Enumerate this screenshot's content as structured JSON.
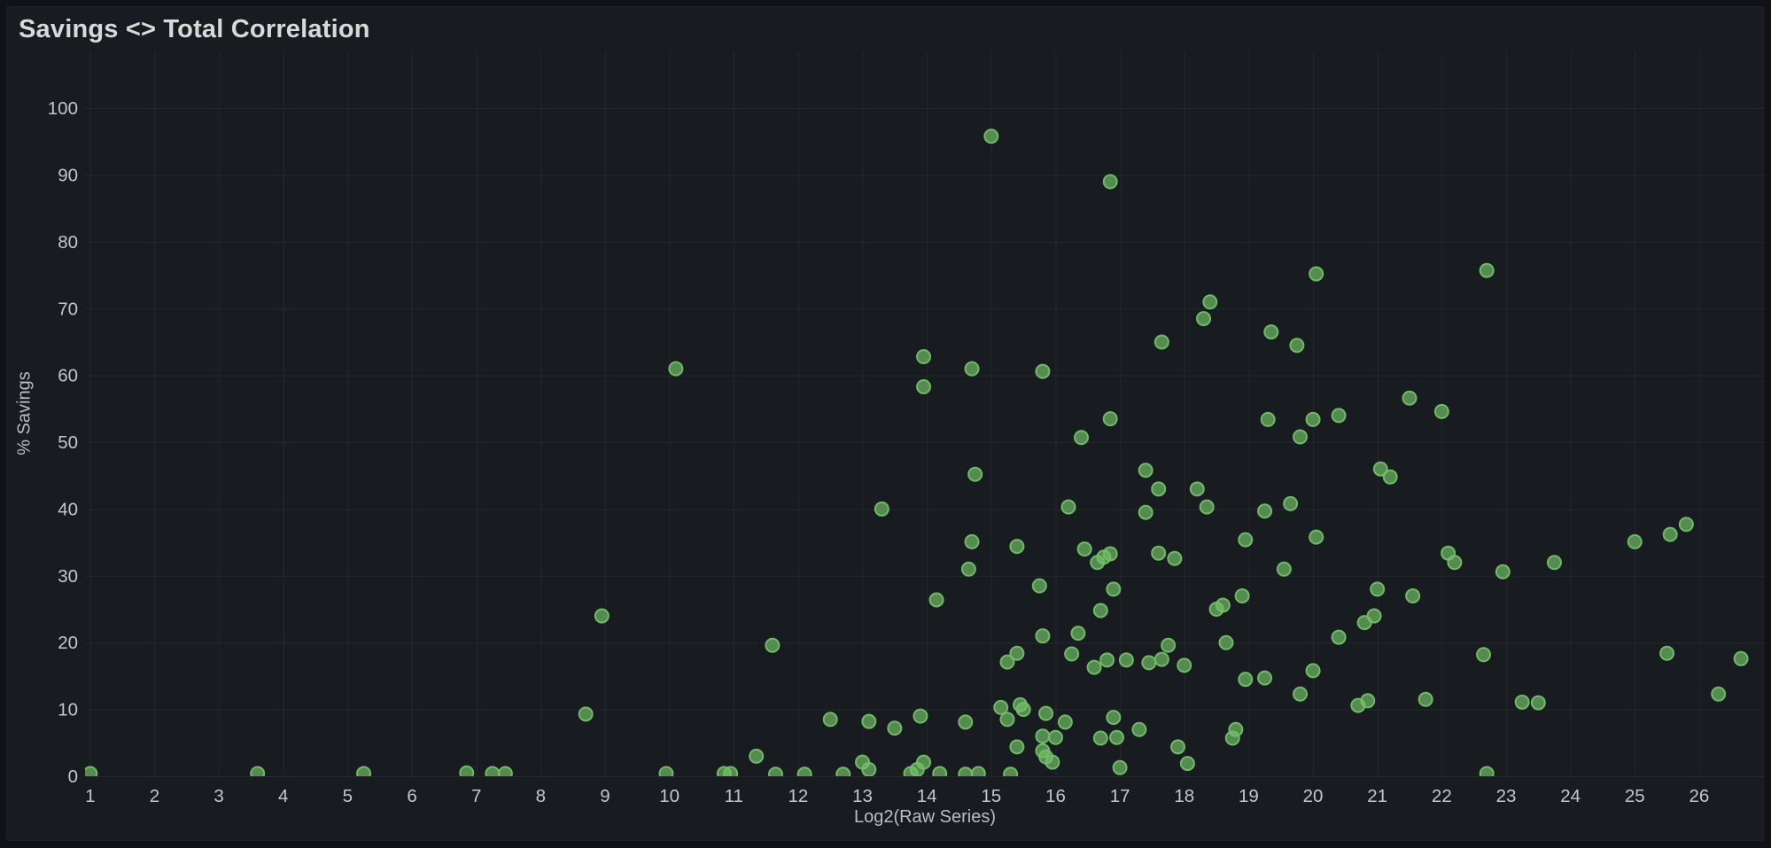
{
  "page": {
    "background": "#111217"
  },
  "panel": {
    "title": "Savings <> Total Correlation",
    "background": "#181b1f",
    "border_color": "#202226",
    "title_color": "#d8d9da"
  },
  "chart_data": {
    "type": "scatter",
    "title": "Savings <> Total Correlation",
    "xlabel": "Log2(Raw Series)",
    "ylabel": "% Savings",
    "x_ticks": [
      1,
      2,
      3,
      4,
      5,
      6,
      7,
      8,
      9,
      10,
      11,
      12,
      13,
      14,
      15,
      16,
      17,
      18,
      19,
      20,
      21,
      22,
      23,
      24,
      25,
      26
    ],
    "y_ticks": [
      0,
      10,
      20,
      30,
      40,
      50,
      60,
      70,
      80,
      90,
      100
    ],
    "x_domain": [
      0.92,
      27.02
    ],
    "y_domain": [
      0,
      108.5
    ],
    "grid": true,
    "legend": "none",
    "point_color": "#73bf69",
    "grid_color": "rgba(204,204,220,0.07)",
    "tick_color": "#c4c5cd",
    "points": [
      [
        1,
        0.4
      ],
      [
        3.6,
        0.4
      ],
      [
        5.25,
        0.4
      ],
      [
        6.85,
        0.5
      ],
      [
        7.25,
        0.4
      ],
      [
        7.45,
        0.4
      ],
      [
        8.7,
        9.3
      ],
      [
        8.95,
        24
      ],
      [
        9.95,
        0.4
      ],
      [
        10.1,
        61
      ],
      [
        10.85,
        0.4
      ],
      [
        10.95,
        0.4
      ],
      [
        11.35,
        3
      ],
      [
        11.6,
        19.6
      ],
      [
        11.65,
        0.3
      ],
      [
        12.1,
        0.3
      ],
      [
        12.5,
        8.5
      ],
      [
        12.7,
        0.3
      ],
      [
        13,
        2.1
      ],
      [
        13.1,
        1
      ],
      [
        13.1,
        8.2
      ],
      [
        13.3,
        40
      ],
      [
        13.5,
        7.2
      ],
      [
        13.75,
        0.4
      ],
      [
        13.85,
        1
      ],
      [
        13.9,
        9
      ],
      [
        13.95,
        2.1
      ],
      [
        13.95,
        58.3
      ],
      [
        13.95,
        62.8
      ],
      [
        14.15,
        26.4
      ],
      [
        14.2,
        0.4
      ],
      [
        14.6,
        0.3
      ],
      [
        14.6,
        8.1
      ],
      [
        14.65,
        31
      ],
      [
        14.7,
        35.1
      ],
      [
        14.7,
        61
      ],
      [
        14.75,
        45.2
      ],
      [
        14.8,
        0.4
      ],
      [
        15,
        95.8
      ],
      [
        15.15,
        10.3
      ],
      [
        15.25,
        8.5
      ],
      [
        15.25,
        17.1
      ],
      [
        15.3,
        0.3
      ],
      [
        15.4,
        4.4
      ],
      [
        15.4,
        18.4
      ],
      [
        15.4,
        34.4
      ],
      [
        15.45,
        10.7
      ],
      [
        15.5,
        10
      ],
      [
        15.75,
        28.5
      ],
      [
        15.8,
        3.8
      ],
      [
        15.8,
        6
      ],
      [
        15.8,
        21
      ],
      [
        15.8,
        60.6
      ],
      [
        15.85,
        2.9
      ],
      [
        15.85,
        9.4
      ],
      [
        15.95,
        2.1
      ],
      [
        16,
        5.8
      ],
      [
        16.15,
        8.1
      ],
      [
        16.2,
        40.3
      ],
      [
        16.25,
        18.3
      ],
      [
        16.35,
        21.4
      ],
      [
        16.4,
        50.7
      ],
      [
        16.45,
        34
      ],
      [
        16.6,
        16.3
      ],
      [
        16.65,
        32
      ],
      [
        16.7,
        5.7
      ],
      [
        16.7,
        24.8
      ],
      [
        16.75,
        32.8
      ],
      [
        16.8,
        17.4
      ],
      [
        16.85,
        33.3
      ],
      [
        16.85,
        53.5
      ],
      [
        16.85,
        89
      ],
      [
        16.9,
        8.8
      ],
      [
        16.9,
        28
      ],
      [
        16.95,
        5.8
      ],
      [
        17,
        1.3
      ],
      [
        17.1,
        17.4
      ],
      [
        17.3,
        7
      ],
      [
        17.4,
        39.5
      ],
      [
        17.4,
        45.8
      ],
      [
        17.45,
        17
      ],
      [
        17.6,
        33.4
      ],
      [
        17.6,
        43
      ],
      [
        17.65,
        17.5
      ],
      [
        17.65,
        65
      ],
      [
        17.75,
        19.6
      ],
      [
        17.85,
        32.6
      ],
      [
        17.9,
        4.4
      ],
      [
        18,
        16.6
      ],
      [
        18.05,
        1.9
      ],
      [
        18.2,
        43
      ],
      [
        18.3,
        68.5
      ],
      [
        18.35,
        40.3
      ],
      [
        18.4,
        71
      ],
      [
        18.5,
        25
      ],
      [
        18.6,
        25.6
      ],
      [
        18.65,
        20
      ],
      [
        18.75,
        5.7
      ],
      [
        18.8,
        7
      ],
      [
        18.9,
        27
      ],
      [
        18.95,
        14.5
      ],
      [
        18.95,
        35.4
      ],
      [
        19.25,
        14.7
      ],
      [
        19.25,
        39.7
      ],
      [
        19.3,
        53.4
      ],
      [
        19.35,
        66.5
      ],
      [
        19.55,
        31
      ],
      [
        19.65,
        40.8
      ],
      [
        19.75,
        64.5
      ],
      [
        19.8,
        12.3
      ],
      [
        19.8,
        50.8
      ],
      [
        20,
        15.8
      ],
      [
        20,
        53.4
      ],
      [
        20.05,
        35.8
      ],
      [
        20.05,
        75.2
      ],
      [
        20.4,
        20.8
      ],
      [
        20.4,
        54
      ],
      [
        20.7,
        10.6
      ],
      [
        20.85,
        11.3
      ],
      [
        20.8,
        23
      ],
      [
        20.95,
        24
      ],
      [
        21,
        28
      ],
      [
        21.05,
        46
      ],
      [
        21.2,
        44.8
      ],
      [
        21.5,
        56.6
      ],
      [
        21.55,
        27
      ],
      [
        21.75,
        11.5
      ],
      [
        22,
        54.6
      ],
      [
        22.1,
        33.4
      ],
      [
        22.2,
        32
      ],
      [
        22.65,
        18.2
      ],
      [
        22.7,
        0.4
      ],
      [
        22.7,
        75.7
      ],
      [
        22.95,
        30.6
      ],
      [
        23.25,
        11.1
      ],
      [
        23.5,
        11
      ],
      [
        23.75,
        32
      ],
      [
        25,
        35.1
      ],
      [
        25.5,
        18.4
      ],
      [
        25.55,
        36.2
      ],
      [
        25.8,
        37.7
      ],
      [
        26.3,
        12.3
      ],
      [
        26.65,
        17.6
      ]
    ]
  }
}
